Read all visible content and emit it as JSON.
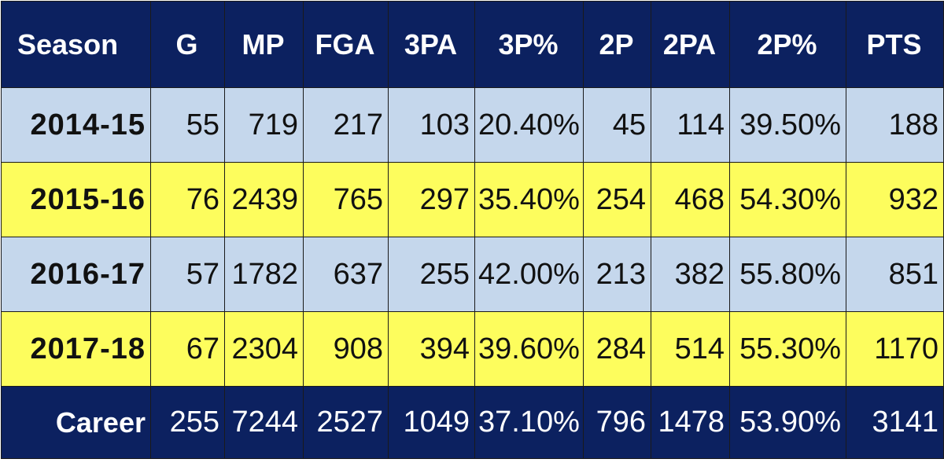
{
  "colors": {
    "header_bg": "#0c2160",
    "header_text": "#ffffff",
    "row_blue": "#c5d7ec",
    "row_yellow": "#fdfd5d",
    "body_text": "#111111"
  },
  "table": {
    "headers": [
      "Season",
      "G",
      "MP",
      "FGA",
      "3PA",
      "3P%",
      "2P",
      "2PA",
      "2P%",
      "PTS"
    ],
    "rows": [
      [
        "2014-15",
        "55",
        "719",
        "217",
        "103",
        "20.40%",
        "45",
        "114",
        "39.50%",
        "188"
      ],
      [
        "2015-16",
        "76",
        "2439",
        "765",
        "297",
        "35.40%",
        "254",
        "468",
        "54.30%",
        "932"
      ],
      [
        "2016-17",
        "57",
        "1782",
        "637",
        "255",
        "42.00%",
        "213",
        "382",
        "55.80%",
        "851"
      ],
      [
        "2017-18",
        "67",
        "2304",
        "908",
        "394",
        "39.60%",
        "284",
        "514",
        "55.30%",
        "1170"
      ]
    ],
    "footer": [
      "Career",
      "255",
      "7244",
      "2527",
      "1049",
      "37.10%",
      "796",
      "1478",
      "53.90%",
      "3141"
    ]
  },
  "chart_data": {
    "type": "table",
    "columns": [
      "Season",
      "G",
      "MP",
      "FGA",
      "3PA",
      "3P%",
      "2P",
      "2PA",
      "2P%",
      "PTS"
    ],
    "rows": [
      [
        "2014-15",
        55,
        719,
        217,
        103,
        "20.40%",
        45,
        114,
        "39.50%",
        188
      ],
      [
        "2015-16",
        76,
        2439,
        765,
        297,
        "35.40%",
        254,
        468,
        "54.30%",
        932
      ],
      [
        "2016-17",
        57,
        1782,
        637,
        255,
        "42.00%",
        213,
        382,
        "55.80%",
        851
      ],
      [
        "2017-18",
        67,
        2304,
        908,
        394,
        "39.60%",
        284,
        514,
        "55.30%",
        1170
      ]
    ],
    "totals": [
      "Career",
      255,
      7244,
      2527,
      1049,
      "37.10%",
      796,
      1478,
      "53.90%",
      3141
    ]
  }
}
